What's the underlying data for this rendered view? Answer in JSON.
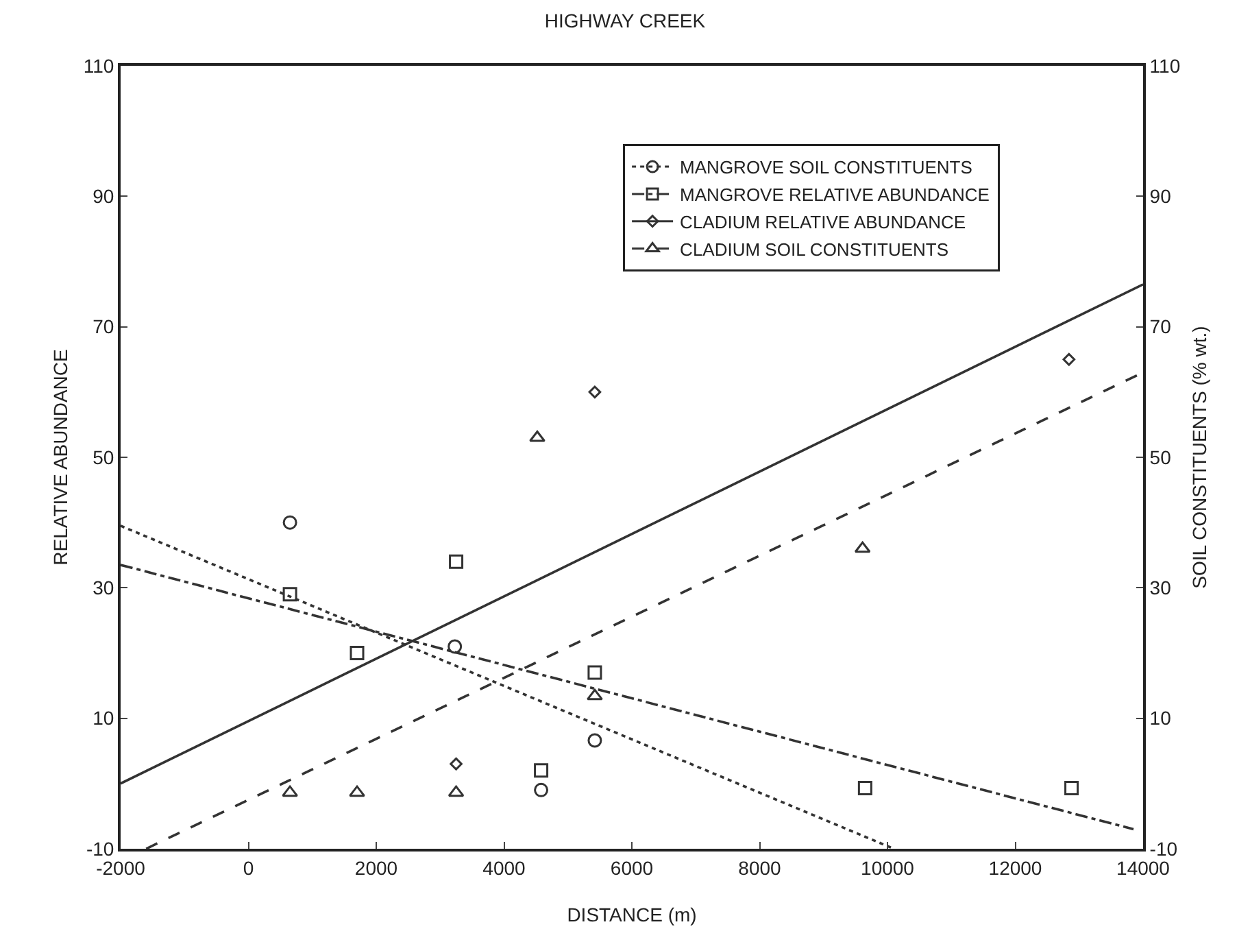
{
  "chart_data": {
    "type": "scatter",
    "title": "HIGHWAY CREEK",
    "xlabel": "DISTANCE (m)",
    "ylabel": "RELATIVE ABUNDANCE",
    "y2label": "SOIL CONSTITUENTS (% wt.)",
    "xlim": [
      -2000,
      14000
    ],
    "xticks": [
      -2000,
      0,
      2000,
      4000,
      6000,
      8000,
      10000,
      12000,
      14000
    ],
    "ylim": [
      -10,
      110
    ],
    "yticks": [
      -10,
      10,
      30,
      50,
      70,
      90,
      110
    ],
    "y2lim": [
      -10,
      110
    ],
    "y2ticks": [
      -10,
      10,
      30,
      50,
      70,
      90,
      110
    ],
    "grid": false,
    "legend": "top right",
    "series": [
      {
        "name": "MANGROVE SOIL CONSTITUENTS",
        "axis": "y2",
        "color": "#333333",
        "marker": "circle",
        "line_style": "dotted",
        "x": [
          650,
          3230,
          4580,
          5420
        ],
        "values": [
          40,
          21,
          -1,
          6.6
        ]
      },
      {
        "name": "MANGROVE RELATIVE ABUNDANCE",
        "color": "#333333",
        "marker": "square",
        "line_style": "dashdot",
        "x": [
          650,
          1700,
          3250,
          4580,
          5420,
          9650,
          12880
        ],
        "values": [
          29,
          20,
          34,
          2,
          17,
          -0.7,
          -0.7
        ]
      },
      {
        "name": "CLADIUM RELATIVE ABUNDANCE",
        "color": "#333333",
        "marker": "diamond",
        "line_style": "solid",
        "x": [
          3250,
          5420,
          12840
        ],
        "values": [
          3,
          60,
          65
        ]
      },
      {
        "name": "CLADIUM SOIL CONSTITUENTS",
        "axis": "y2",
        "color": "#333333",
        "marker": "triangle",
        "line_style": "dashed",
        "x": [
          650,
          1700,
          3250,
          4520,
          5420,
          9610
        ],
        "values": [
          -1.4,
          -1.4,
          -1.4,
          53,
          13.4,
          36
        ]
      },
      {
        "type": "line",
        "axis": "y2",
        "color": "#333333",
        "line_style": "dotted",
        "x": [
          -2000,
          10100
        ],
        "values": [
          39.5,
          -10
        ]
      },
      {
        "type": "line",
        "color": "#333333",
        "line_style": "dashdot",
        "x": [
          -2000,
          13850
        ],
        "values": [
          33.5,
          -7
        ]
      },
      {
        "type": "line",
        "color": "#333333",
        "line_style": "solid",
        "x": [
          -2000,
          14000
        ],
        "values": [
          0,
          76.5
        ]
      },
      {
        "type": "line",
        "axis": "y2",
        "color": "#333333",
        "line_style": "dashed",
        "x": [
          -1600,
          14000
        ],
        "values": [
          -10,
          63
        ]
      }
    ]
  }
}
